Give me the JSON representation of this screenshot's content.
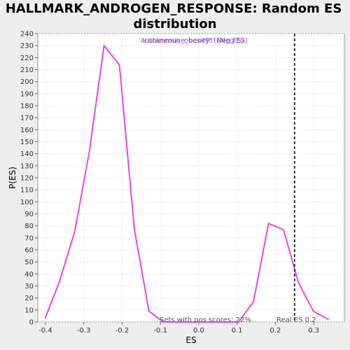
{
  "chart_data": {
    "type": "line",
    "title_line1": "HALLMARK_ANDROGEN_RESPONSE: Random ES",
    "title_line2": "distribution",
    "xlabel": "ES",
    "ylabel": "P(ES)",
    "xlim": [
      -0.42,
      0.38
    ],
    "ylim": [
      0,
      240
    ],
    "x_ticks": [
      -0.4,
      -0.3,
      -0.2,
      -0.1,
      0.0,
      0.1,
      0.2,
      0.3
    ],
    "x_tick_labels": [
      "-0.4",
      "-0.3",
      "-0.2",
      "-0.1",
      "0.0",
      "0.1",
      "0.2",
      "0.3"
    ],
    "y_ticks": [
      0,
      10,
      20,
      30,
      40,
      50,
      60,
      70,
      80,
      90,
      100,
      110,
      120,
      130,
      140,
      150,
      160,
      170,
      180,
      190,
      200,
      210,
      220,
      230,
      240
    ],
    "grid": true,
    "legend_position": "top",
    "legend": {
      "label_a": "'cutaneous_obesity' (Neg ES)",
      "label_b": "'autoimmune_benefit' (Neg ES)",
      "color_a": "#cc33cc",
      "color_b": "#4444cc"
    },
    "series": [
      {
        "color": "#ee44ee",
        "x": [
          -0.401,
          -0.363,
          -0.324,
          -0.286,
          -0.247,
          -0.207,
          -0.168,
          -0.13,
          -0.092,
          -0.052,
          -0.014,
          0.025,
          0.064,
          0.104,
          0.143,
          0.182,
          0.221,
          0.26,
          0.299,
          0.339
        ],
        "y": [
          3,
          34,
          75,
          141,
          230,
          214,
          77,
          9,
          0,
          0,
          0,
          0,
          0,
          0,
          17,
          82,
          77,
          33,
          9,
          2
        ]
      }
    ],
    "real_es": 0.25,
    "real_es_label": "Real ES 0.2",
    "annotation": "Sets with pos scores: 22%"
  }
}
